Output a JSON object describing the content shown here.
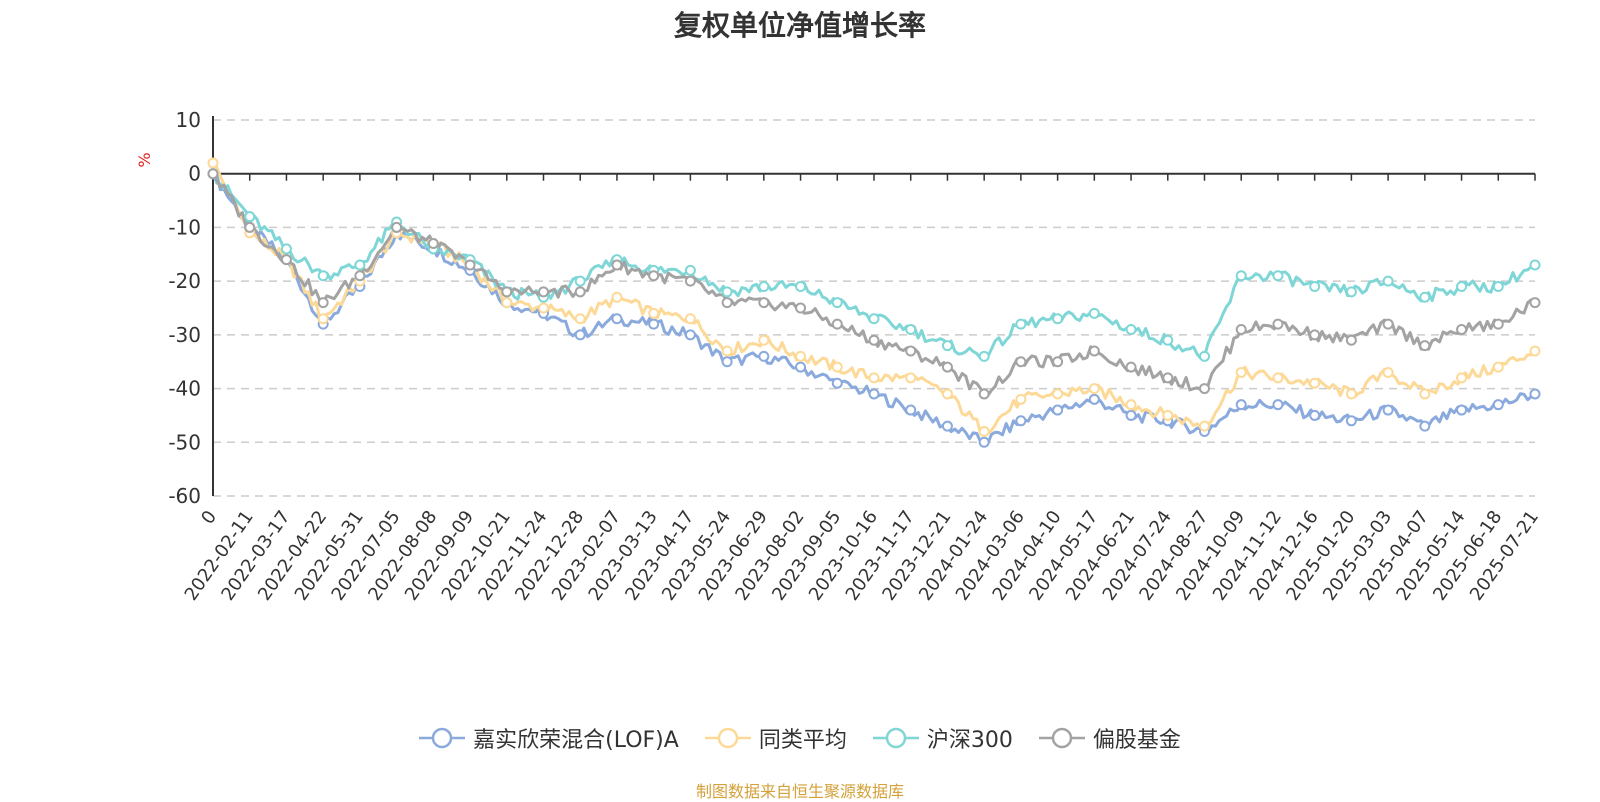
{
  "chart_data": {
    "type": "line",
    "title": "复权单位净值增长率",
    "ylabel": "%",
    "ylim": [
      -60,
      10
    ],
    "yticks": [
      10,
      0,
      -10,
      -20,
      -30,
      -40,
      -50,
      -60
    ],
    "grid": true,
    "legend_position": "bottom",
    "x": [
      "0",
      "2022-02-11",
      "2022-03-17",
      "2022-04-22",
      "2022-05-31",
      "2022-07-05",
      "2022-08-08",
      "2022-09-09",
      "2022-10-21",
      "2022-11-24",
      "2022-12-28",
      "2023-02-07",
      "2023-03-13",
      "2023-04-17",
      "2023-05-24",
      "2023-06-29",
      "2023-08-02",
      "2023-09-05",
      "2023-10-16",
      "2023-11-17",
      "2023-12-21",
      "2024-01-24",
      "2024-03-06",
      "2024-04-10",
      "2024-05-17",
      "2024-06-21",
      "2024-07-24",
      "2024-08-27",
      "2024-10-09",
      "2024-11-12",
      "2024-12-16",
      "2025-01-20",
      "2025-03-03",
      "2025-04-07",
      "2025-05-14",
      "2025-06-18",
      "2025-07-21"
    ],
    "series": [
      {
        "name": "嘉实欣荣混合(LOF)A",
        "color": "#8aa9dc",
        "values": [
          0,
          -10,
          -16,
          -28,
          -21,
          -11,
          -14,
          -18,
          -24,
          -26,
          -30,
          -27,
          -28,
          -30,
          -35,
          -34,
          -36,
          -39,
          -41,
          -44,
          -47,
          -50,
          -46,
          -44,
          -42,
          -45,
          -46,
          -48,
          -43,
          -43,
          -45,
          -46,
          -44,
          -47,
          -44,
          -43,
          -41
        ]
      },
      {
        "name": "同类平均",
        "color": "#fdd998",
        "values": [
          2,
          -11,
          -16,
          -27,
          -20,
          -11,
          -13,
          -17,
          -24,
          -25,
          -27,
          -23,
          -26,
          -27,
          -33,
          -31,
          -34,
          -36,
          -38,
          -38,
          -41,
          -48,
          -42,
          -41,
          -40,
          -43,
          -45,
          -47,
          -37,
          -38,
          -39,
          -41,
          -37,
          -41,
          -38,
          -36,
          -33
        ]
      },
      {
        "name": "沪深300",
        "color": "#7fd6d6",
        "values": [
          0,
          -8,
          -14,
          -19,
          -17,
          -9,
          -14,
          -16,
          -22,
          -23,
          -20,
          -16,
          -18,
          -18,
          -22,
          -21,
          -21,
          -24,
          -27,
          -29,
          -32,
          -34,
          -28,
          -27,
          -26,
          -29,
          -31,
          -34,
          -19,
          -19,
          -21,
          -22,
          -20,
          -23,
          -21,
          -21,
          -17
        ]
      },
      {
        "name": "偏股基金",
        "color": "#a3a3a3",
        "values": [
          0,
          -10,
          -16,
          -24,
          -19,
          -10,
          -13,
          -17,
          -22,
          -22,
          -22,
          -17,
          -19,
          -20,
          -24,
          -24,
          -25,
          -28,
          -31,
          -33,
          -36,
          -41,
          -35,
          -35,
          -33,
          -36,
          -38,
          -40,
          -29,
          -28,
          -30,
          -31,
          -28,
          -32,
          -29,
          -28,
          -24
        ]
      }
    ]
  },
  "legend": {
    "items": [
      {
        "label": "嘉实欣荣混合(LOF)A",
        "color": "#8aa9dc"
      },
      {
        "label": "同类平均",
        "color": "#fdd998"
      },
      {
        "label": "沪深300",
        "color": "#7fd6d6"
      },
      {
        "label": "偏股基金",
        "color": "#a3a3a3"
      }
    ]
  },
  "footer": {
    "source": "制图数据来自恒生聚源数据库",
    "source_color": "#d4a13a"
  }
}
